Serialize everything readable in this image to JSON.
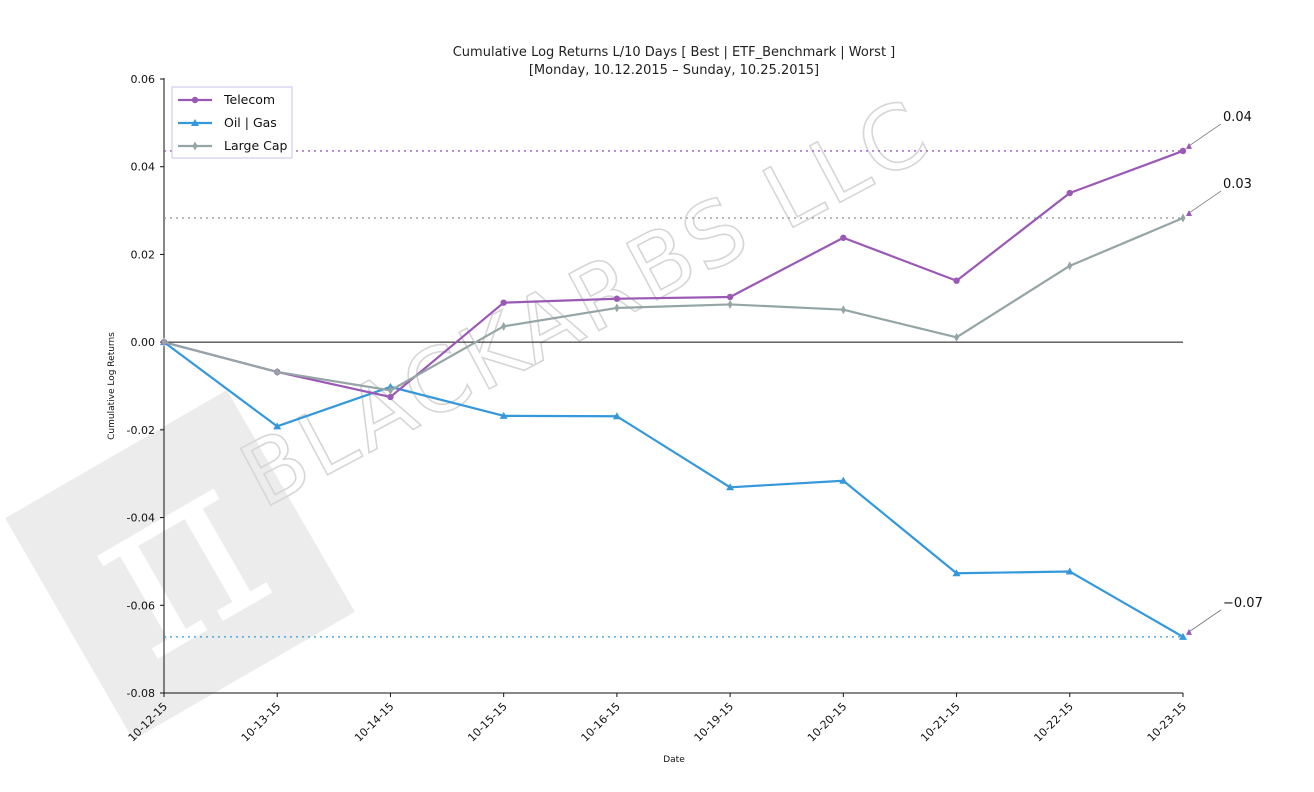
{
  "chart_data": {
    "type": "line",
    "title": "Cumulative Log Returns L/10 Days [ Best | ETF_Benchmark | Worst ]",
    "subtitle": "[Monday, 10.12.2015 – Sunday, 10.25.2015]",
    "xlabel": "Date",
    "ylabel": "Cumulative Log Returns",
    "ylim": [
      -0.08,
      0.06
    ],
    "yticks": [
      "-0.08",
      "-0.06",
      "-0.04",
      "-0.02",
      "0.00",
      "0.02",
      "0.04",
      "0.06"
    ],
    "categories": [
      "10-12-15",
      "10-13-15",
      "10-14-15",
      "10-15-15",
      "10-16-15",
      "10-19-15",
      "10-20-15",
      "10-21-15",
      "10-22-15",
      "10-23-15"
    ],
    "series": [
      {
        "name": "Telecom",
        "color": "#9b59b6",
        "marker": "circle",
        "values": [
          0.0,
          -0.0068,
          -0.0125,
          0.009,
          0.0099,
          0.0103,
          0.0238,
          0.014,
          0.034,
          0.0436
        ]
      },
      {
        "name": "Oil | Gas",
        "color": "#3498db",
        "marker": "triangle",
        "values": [
          0.0,
          -0.0192,
          -0.0102,
          -0.0168,
          -0.0169,
          -0.0331,
          -0.0316,
          -0.0527,
          -0.0523,
          -0.0672
        ]
      },
      {
        "name": "Large Cap",
        "color": "#95a5a6",
        "marker": "diamond",
        "values": [
          0.0,
          -0.0068,
          -0.011,
          0.0036,
          0.0078,
          0.0086,
          0.0074,
          0.0011,
          0.0174,
          0.0283
        ]
      }
    ],
    "reference_lines": [
      {
        "series": "Telecom",
        "value": 0.0436,
        "label": "0.04"
      },
      {
        "series": "Large Cap",
        "value": 0.0283,
        "label": "0.03"
      },
      {
        "series": "Oil | Gas",
        "value": -0.0672,
        "label": "−0.07"
      }
    ],
    "zero_line": true,
    "grid": false,
    "legend_position": "top-left"
  },
  "watermark": {
    "text": "BLACKARBS LLC",
    "symbol": "π"
  }
}
